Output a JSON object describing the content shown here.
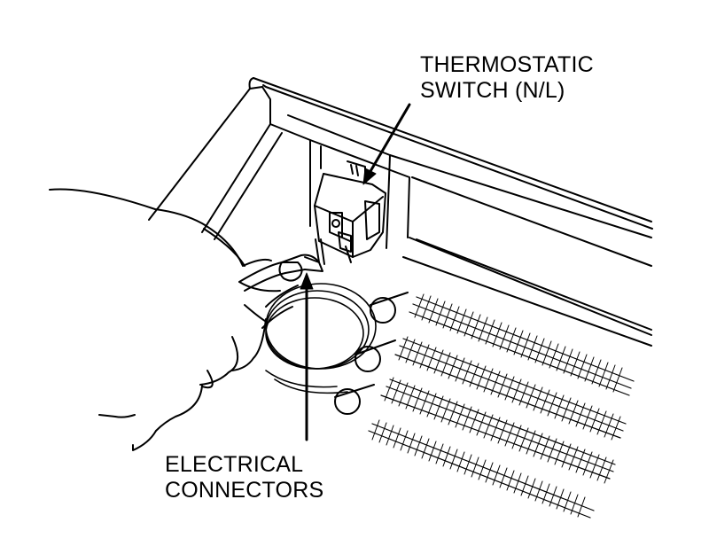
{
  "labels": {
    "thermostatic_switch": {
      "line1": "THERMOSTATIC",
      "line2": "SWITCH (N/L)"
    },
    "electrical_connectors": {
      "line1": "ELECTRICAL",
      "line2": "CONNECTORS"
    }
  },
  "colors": {
    "ink": "#000000",
    "paper": "#ffffff"
  }
}
